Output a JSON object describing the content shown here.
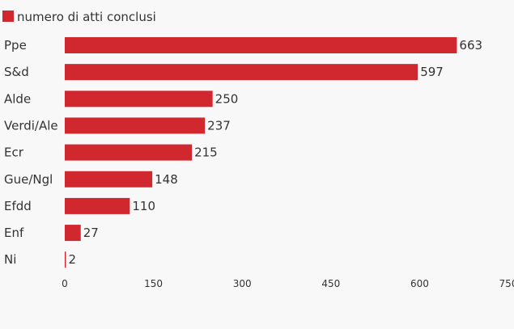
{
  "chart_data": {
    "type": "bar",
    "orientation": "horizontal",
    "legend": {
      "position": "top-left",
      "label": "numero di atti conclusi"
    },
    "categories": [
      "Ppe",
      "S&d",
      "Alde",
      "Verdi/Ale",
      "Ecr",
      "Gue/Ngl",
      "Efdd",
      "Enf",
      "Ni"
    ],
    "series": [
      {
        "name": "numero di atti conclusi",
        "color": "#d0282e",
        "values": [
          663,
          597,
          250,
          237,
          215,
          148,
          110,
          27,
          2
        ]
      }
    ],
    "xlim": [
      0,
      750
    ],
    "xticks": [
      "0",
      "150",
      "300",
      "450",
      "600",
      "750"
    ],
    "data_labels": [
      "663",
      "597",
      "250",
      "237",
      "215",
      "148",
      "110",
      "27",
      "2"
    ],
    "grid": false
  }
}
